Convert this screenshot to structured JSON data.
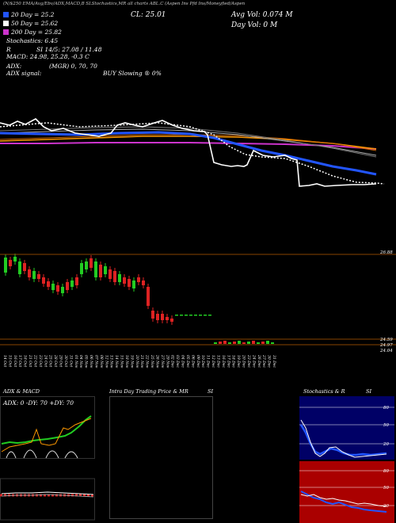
{
  "header": {
    "top_line": "(N/$250 EMA/Avg/Ebv/ADX,MACD,B   SLStochastics,MR   all charts ABL.C   (Aspen Ins Pfd Ins/Moneyfied/Aspen",
    "close_label": "CL: 25.01",
    "avg_vol_label": "Avg Vol: 0.074   M",
    "day_vol_label": "Day Vol: 0   M",
    "ma_legend": [
      {
        "label": "20  Day = 25.2",
        "color": "#2255ff"
      },
      {
        "label": "50  Day = 25.62",
        "color": "#ffffff"
      },
      {
        "label": "200  Day = 25.82",
        "color": "#cc33cc"
      }
    ],
    "stochastics_label": "Stochastics: 6.45",
    "r_label": "R",
    "si_label": "SI 14/5: 27.08 / 11.48",
    "macd_label": "MACD: 24.98, 25.28, -0.3  C",
    "adx_label": "ADX:",
    "mgr_label": "(MGR) 0,  70,  70",
    "adx_signal_label": "ADX  signal:",
    "buy_label": "BUY Slowing ® 0%"
  },
  "main_chart": {
    "price_tag": "26.88",
    "volume_tag_top": "24.59",
    "volume_tag_bottom": "24.97",
    "volume_tag_bottom2": "24.04",
    "x_ticks": [
      "14 Oct",
      "15 Oct",
      "16 Oct",
      "17 Oct",
      "18 Oct",
      "21 Oct",
      "22 Oct",
      "23 Oct",
      "24 Oct",
      "25 Oct",
      "28 Oct",
      "29 Oct",
      "30 Oct",
      "31 Oct",
      "01 Nov",
      "04 Nov",
      "05 Nov",
      "06 Nov",
      "07 Nov",
      "08 Nov",
      "12 Nov",
      "13 Nov",
      "14 Nov",
      "15 Nov",
      "18 Nov",
      "19 Nov",
      "20 Nov",
      "21 Nov",
      "22 Nov",
      "25 Nov",
      "26 Nov",
      "27 Nov",
      "29 Nov",
      "02 Dec",
      "03 Dec",
      "04 Dec",
      "05 Dec",
      "06 Dec",
      "09 Dec",
      "10 Dec",
      "11 Dec",
      "12 Dec",
      "13 Dec",
      "16 Dec",
      "17 Dec",
      "18 Dec",
      "19 Dec",
      "20 Dec",
      "23 Dec",
      "24 Dec",
      "26 Dec",
      "27 Dec",
      "30 Dec",
      "31 Dec"
    ]
  },
  "panels": {
    "adx_title": "ADX  & MACD",
    "adx_readout": "ADX: 0   -DY: 70   +DY: 70",
    "intraday_title": "Intra  Day Trading Price  & MR",
    "intraday_si": "SI",
    "stoch_title": "Stochastics & R",
    "stoch_si": "SI",
    "stoch_ticks": [
      "80",
      "50",
      "20"
    ],
    "rsi_ticks": [
      "80",
      "50",
      "20"
    ]
  },
  "colors": {
    "bull": "#22cc22",
    "bear": "#dd2222",
    "ema20": "#2255ff",
    "ema50": "#ffffff",
    "ema200": "#cc33cc",
    "orange": "#ff9900",
    "stoch_bg": "#000066",
    "rsi_bg": "#aa0000"
  },
  "chart_data": {
    "type": "candlestick",
    "title": "",
    "close": [
      25.01
    ],
    "series": [
      {
        "name": "20  Day",
        "values": [
          25.2
        ]
      },
      {
        "name": "50  Day",
        "values": [
          25.62
        ]
      },
      {
        "name": "200  Day",
        "values": [
          25.82
        ]
      }
    ]
  }
}
